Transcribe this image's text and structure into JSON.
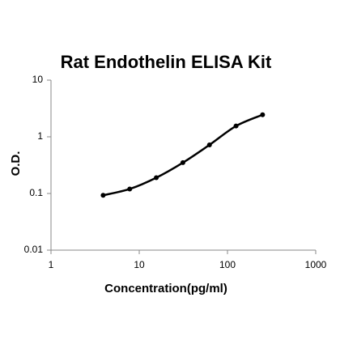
{
  "chart_data": {
    "type": "line",
    "title": "Rat Endothelin ELISA Kit",
    "x_label": "Concentration(pg/ml)",
    "y_label": "O.D.",
    "x": [
      3.9,
      7.8,
      15.6,
      31.25,
      62.5,
      125,
      250
    ],
    "series": [
      {
        "color": "#000000",
        "values": [
          0.093,
          0.12,
          0.19,
          0.35,
          0.72,
          1.55,
          2.45
        ]
      }
    ],
    "xlim": [
      1,
      1000
    ],
    "xticks": [
      1,
      10,
      100,
      1000
    ],
    "ylim": [
      0.01,
      10
    ],
    "yticks": [
      0.01,
      0.1,
      1,
      10
    ],
    "xscale": "log",
    "yscale": "log",
    "grid": false,
    "markers": true
  }
}
